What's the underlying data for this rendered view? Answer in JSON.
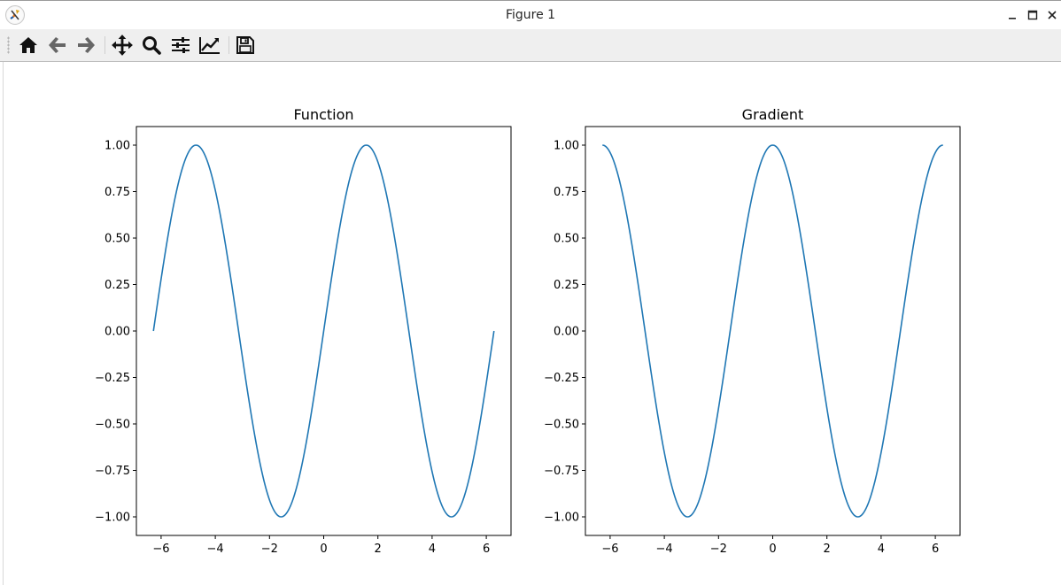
{
  "window": {
    "title": "Figure 1",
    "app_icon": "matplotlib-figure-icon",
    "controls": [
      "minimize-icon",
      "maximize-icon",
      "close-icon"
    ]
  },
  "toolbar": {
    "buttons": [
      {
        "name": "home",
        "icon": "home-icon",
        "tooltip": "Reset original view"
      },
      {
        "name": "back",
        "icon": "arrow-left-icon",
        "tooltip": "Back to previous view"
      },
      {
        "name": "forward",
        "icon": "arrow-right-icon",
        "tooltip": "Forward to next view"
      },
      {
        "name": "pan",
        "icon": "move-icon",
        "tooltip": "Pan axes"
      },
      {
        "name": "zoom",
        "icon": "zoom-icon",
        "tooltip": "Zoom to rectangle"
      },
      {
        "name": "subplots",
        "icon": "sliders-icon",
        "tooltip": "Configure subplots"
      },
      {
        "name": "customize",
        "icon": "line-chart-icon",
        "tooltip": "Edit axis, curve and image parameters"
      },
      {
        "name": "save",
        "icon": "floppy-disk-icon",
        "tooltip": "Save the figure"
      }
    ]
  },
  "colors": {
    "line": "#1f77b4",
    "axes": "#000000",
    "toolbar_bg": "#efefef"
  },
  "chart_data": [
    {
      "type": "line",
      "title": "Function",
      "xlabel": "",
      "ylabel": "",
      "xlim": [
        -6.912,
        6.912
      ],
      "ylim": [
        -1.1,
        1.1
      ],
      "xticks": [
        -6,
        -4,
        -2,
        0,
        2,
        4,
        6
      ],
      "xtick_labels": [
        "−6",
        "−4",
        "−2",
        "0",
        "2",
        "4",
        "6"
      ],
      "yticks": [
        -1.0,
        -0.75,
        -0.5,
        -0.25,
        0.0,
        0.25,
        0.5,
        0.75,
        1.0
      ],
      "ytick_labels": [
        "−1.00",
        "−0.75",
        "−0.50",
        "−0.25",
        "0.00",
        "0.25",
        "0.50",
        "0.75",
        "1.00"
      ],
      "grid": false,
      "series": [
        {
          "color": "#1f77b4",
          "x_range": [
            -6.2832,
            6.2832
          ],
          "x": [
            -6.2832,
            -5.4978,
            -4.7124,
            -3.927,
            -3.1416,
            -2.3562,
            -1.5708,
            -0.7854,
            0,
            0.7854,
            1.5708,
            2.3562,
            3.1416,
            3.927,
            4.7124,
            5.4978,
            6.2832
          ],
          "y": [
            0,
            0.7071,
            1,
            0.7071,
            0,
            -0.7071,
            -1,
            -0.7071,
            0,
            0.7071,
            1,
            0.7071,
            0,
            -0.7071,
            -1,
            -0.7071,
            0
          ]
        }
      ]
    },
    {
      "type": "line",
      "title": "Gradient",
      "xlabel": "",
      "ylabel": "",
      "xlim": [
        -6.912,
        6.912
      ],
      "ylim": [
        -1.1,
        1.1
      ],
      "xticks": [
        -6,
        -4,
        -2,
        0,
        2,
        4,
        6
      ],
      "xtick_labels": [
        "−6",
        "−4",
        "−2",
        "0",
        "2",
        "4",
        "6"
      ],
      "yticks": [
        -1.0,
        -0.75,
        -0.5,
        -0.25,
        0.0,
        0.25,
        0.5,
        0.75,
        1.0
      ],
      "ytick_labels": [
        "−1.00",
        "−0.75",
        "−0.50",
        "−0.25",
        "0.00",
        "0.25",
        "0.50",
        "0.75",
        "1.00"
      ],
      "grid": false,
      "series": [
        {
          "color": "#1f77b4",
          "x_range": [
            -6.2832,
            6.2832
          ],
          "x": [
            -6.2832,
            -5.4978,
            -4.7124,
            -3.927,
            -3.1416,
            -2.3562,
            -1.5708,
            -0.7854,
            0,
            0.7854,
            1.5708,
            2.3562,
            3.1416,
            3.927,
            4.7124,
            5.4978,
            6.2832
          ],
          "y": [
            1,
            0.7071,
            0,
            -0.7071,
            -1,
            -0.7071,
            0,
            0.7071,
            1,
            0.7071,
            0,
            -0.7071,
            -1,
            -0.7071,
            0,
            0.7071,
            1
          ]
        }
      ]
    }
  ]
}
